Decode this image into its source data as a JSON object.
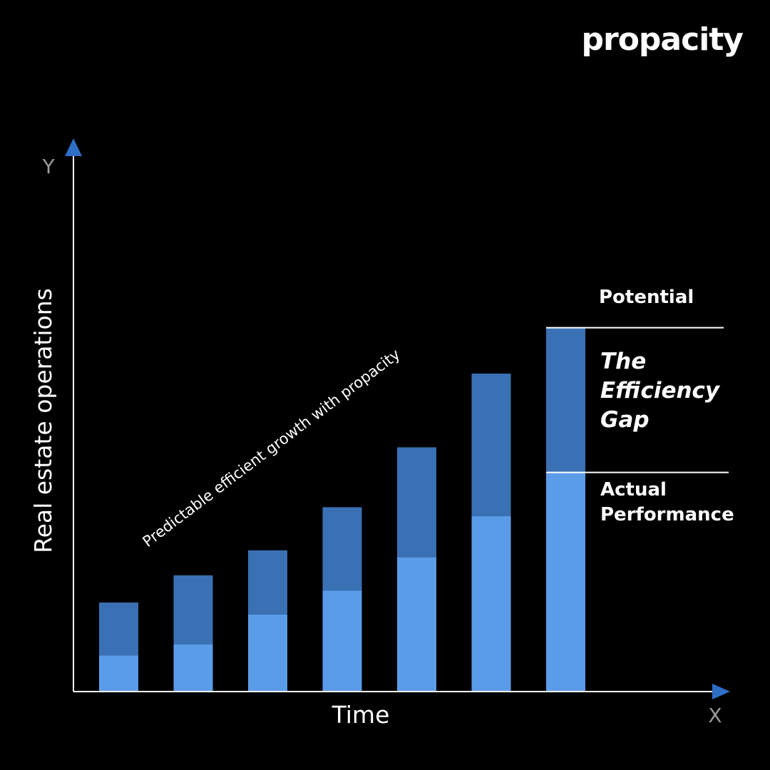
{
  "brand": {
    "name": "propacity"
  },
  "colors": {
    "background": "#000000",
    "axis": "#ffffff",
    "arrow": "#2f6ec7",
    "actual": "#5b9ce8",
    "gap": "#3a70b4",
    "axis_letter": "#9a9a9a"
  },
  "chart_data": {
    "type": "bar",
    "stacked": true,
    "title": "",
    "xlabel": "Time",
    "ylabel": "Real estate operations",
    "x_axis_letter": "X",
    "y_axis_letter": "Y",
    "categories": [
      "",
      "",
      "",
      "",
      "",
      "",
      ""
    ],
    "ylim": [
      0,
      750
    ],
    "series": [
      {
        "name": "Actual Performance",
        "color": "#5b9ce8",
        "values": [
          52,
          68,
          111,
          145,
          193,
          252,
          315
        ]
      },
      {
        "name": "The Efficiency Gap",
        "color": "#3a70b4",
        "values": [
          76,
          99,
          92,
          120,
          158,
          205,
          208
        ]
      }
    ],
    "annotations": {
      "trend_text": "Predictable efficient growth with propacity",
      "potential_label": "Potential",
      "gap_label_lines": [
        "The",
        "Efficiency",
        "Gap"
      ],
      "actual_label_lines": [
        "Actual",
        "Performance"
      ]
    }
  }
}
